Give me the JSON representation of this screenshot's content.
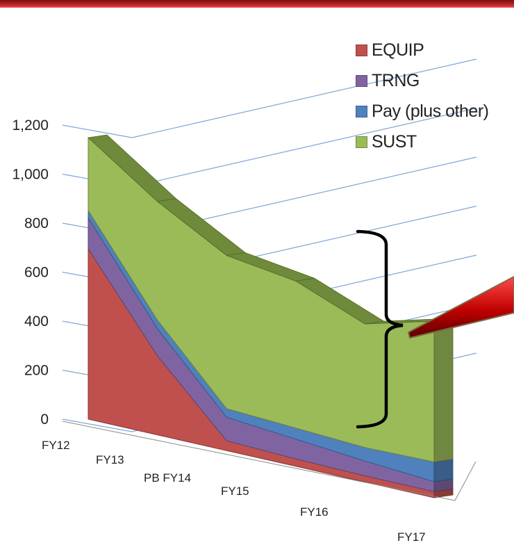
{
  "colors": {
    "equip": "#c0504d",
    "trng": "#8064a2",
    "pay": "#4f81bd",
    "sust": "#9bbb59",
    "sust_dark": "#6e8a3a",
    "grid": "#7ea6d6",
    "brace": "#000000",
    "arrow": "#c00000"
  },
  "chart_data": {
    "type": "area",
    "categories": [
      "FY12",
      "FY13",
      "PB FY14",
      "FY15",
      "FY16",
      "FY17"
    ],
    "stacked": true,
    "three_d": true,
    "ylim": [
      0,
      1200
    ],
    "yticks": [
      "0",
      "200",
      "400",
      "600",
      "800",
      "1,000",
      "1,200"
    ],
    "series": [
      {
        "name": "EQUIP",
        "values": [
          690,
          320,
          40,
          30,
          25,
          25
        ]
      },
      {
        "name": "TRNG",
        "values": [
          125,
          110,
          95,
          80,
          60,
          40
        ]
      },
      {
        "name": "Pay (plus other)",
        "values": [
          30,
          35,
          35,
          45,
          55,
          80
        ]
      },
      {
        "name": "SUST",
        "values": [
          295,
          480,
          620,
          595,
          500,
          570
        ]
      }
    ],
    "legend_position": "top-right",
    "grid": true
  }
}
